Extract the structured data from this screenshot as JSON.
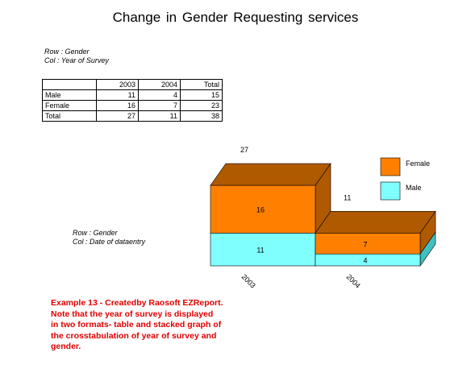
{
  "title": "Change  in  Gender Requesting  services",
  "table_note": {
    "row": "Row : Gender",
    "col": "Col : Year of  Survey"
  },
  "table": {
    "headers": [
      "",
      "2003",
      "2004",
      "Total"
    ],
    "rows": [
      [
        "Male",
        "11",
        "4",
        "15"
      ],
      [
        "Female",
        "16",
        "7",
        "23"
      ],
      [
        "Total",
        "27",
        "11",
        "38"
      ]
    ]
  },
  "chart_note": {
    "row": "Row : Gender",
    "col": "Col : Date of dataentry"
  },
  "chart_data": {
    "type": "bar",
    "stacked": true,
    "three_d": true,
    "categories": [
      "2003",
      "2004"
    ],
    "series": [
      {
        "name": "Male",
        "values": [
          11,
          4
        ],
        "color": "#80ffff",
        "side_color": "#40c0c0"
      },
      {
        "name": "Female",
        "values": [
          16,
          7
        ],
        "color": "#ff8000",
        "side_color": "#b05a00"
      }
    ],
    "totals": [
      27,
      11
    ],
    "legend_placement": "top-right",
    "grid": false
  },
  "caption": [
    "Example 13 - Createdby Raosoft EZReport.",
    "Note  that  the  year of  survey  is  displayed",
    "in  two  formats- table  and  stacked graph  of",
    " the  crosstabulation  of  year  of  survey  and",
    "gender."
  ]
}
